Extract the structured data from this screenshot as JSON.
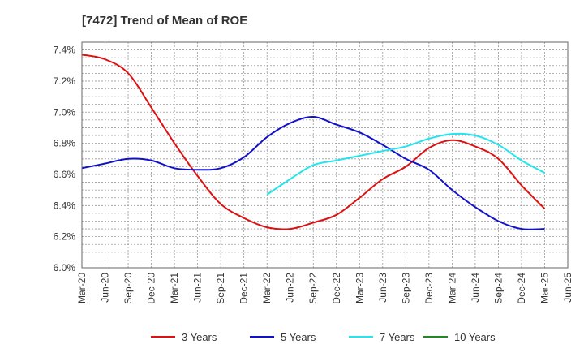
{
  "chart_data": {
    "type": "line",
    "title": "[7472]  Trend of Mean of ROE",
    "xlabel": "",
    "ylabel": "",
    "x_ticks": [
      "Mar-20",
      "Jun-20",
      "Sep-20",
      "Dec-20",
      "Mar-21",
      "Jun-21",
      "Sep-21",
      "Dec-21",
      "Mar-22",
      "Jun-22",
      "Sep-22",
      "Dec-22",
      "Mar-23",
      "Jun-23",
      "Sep-23",
      "Dec-23",
      "Mar-24",
      "Jun-24",
      "Sep-24",
      "Dec-24",
      "Mar-25",
      "Jun-25"
    ],
    "y_ticks": [
      6.0,
      6.2,
      6.4,
      6.6,
      6.8,
      7.0,
      7.2,
      7.4
    ],
    "y_tick_labels": [
      "6.0%",
      "6.2%",
      "6.4%",
      "6.6%",
      "6.8%",
      "7.0%",
      "7.2%",
      "7.4%"
    ],
    "ylim": [
      6.0,
      7.45
    ],
    "grid": true,
    "legend_position": "bottom",
    "series": [
      {
        "name": "3 Years",
        "color": "#dd1111",
        "x": [
          "Mar-20",
          "Jun-20",
          "Sep-20",
          "Dec-20",
          "Mar-21",
          "Jun-21",
          "Sep-21",
          "Dec-21",
          "Mar-22",
          "Jun-22",
          "Sep-22",
          "Dec-22",
          "Mar-23",
          "Jun-23",
          "Sep-23",
          "Dec-23",
          "Mar-24",
          "Jun-24",
          "Sep-24",
          "Dec-24",
          "Mar-25"
        ],
        "values": [
          7.37,
          7.34,
          7.25,
          7.03,
          6.8,
          6.59,
          6.41,
          6.32,
          6.26,
          6.25,
          6.29,
          6.34,
          6.45,
          6.57,
          6.65,
          6.77,
          6.82,
          6.78,
          6.7,
          6.53,
          6.38
        ]
      },
      {
        "name": "5 Years",
        "color": "#1111cc",
        "x": [
          "Mar-20",
          "Jun-20",
          "Sep-20",
          "Dec-20",
          "Mar-21",
          "Jun-21",
          "Sep-21",
          "Dec-21",
          "Mar-22",
          "Jun-22",
          "Sep-22",
          "Dec-22",
          "Mar-23",
          "Jun-23",
          "Sep-23",
          "Dec-23",
          "Mar-24",
          "Jun-24",
          "Sep-24",
          "Dec-24",
          "Mar-25"
        ],
        "values": [
          6.64,
          6.67,
          6.7,
          6.69,
          6.64,
          6.63,
          6.64,
          6.71,
          6.84,
          6.93,
          6.97,
          6.92,
          6.87,
          6.79,
          6.7,
          6.63,
          6.5,
          6.39,
          6.3,
          6.25,
          6.25
        ]
      },
      {
        "name": "7 Years",
        "color": "#22e5ee",
        "x": [
          "Mar-22",
          "Jun-22",
          "Sep-22",
          "Dec-22",
          "Mar-23",
          "Jun-23",
          "Sep-23",
          "Dec-23",
          "Mar-24",
          "Jun-24",
          "Sep-24",
          "Dec-24",
          "Mar-25"
        ],
        "values": [
          6.47,
          6.57,
          6.66,
          6.69,
          6.72,
          6.75,
          6.78,
          6.83,
          6.86,
          6.85,
          6.79,
          6.69,
          6.61
        ]
      },
      {
        "name": "10 Years",
        "color": "#228822",
        "x": [],
        "values": []
      }
    ]
  }
}
